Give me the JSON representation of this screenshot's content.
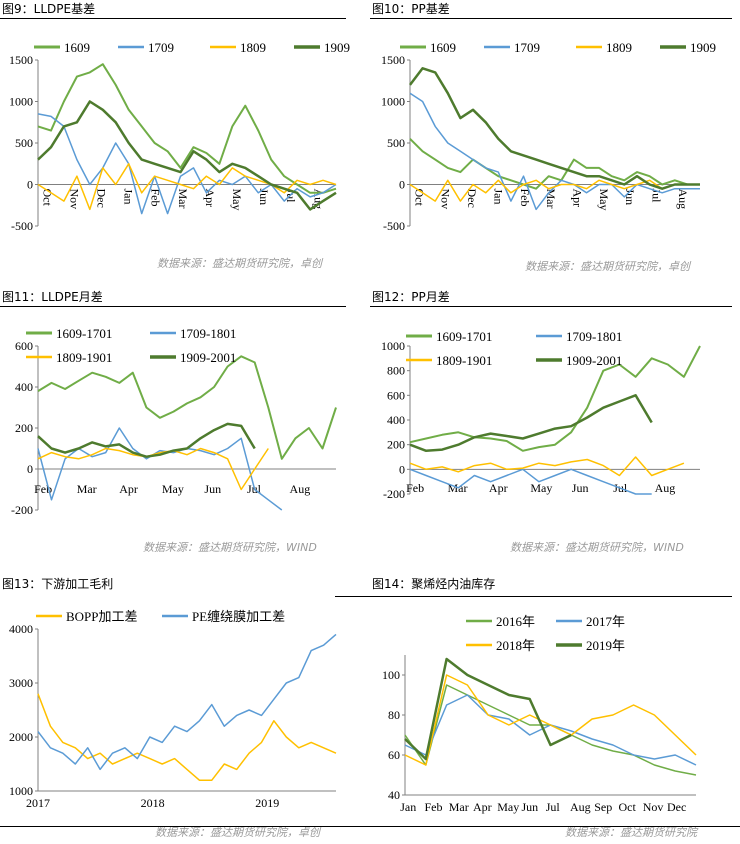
{
  "colors": {
    "light_green": "#70AD47",
    "blue": "#5B9BD5",
    "yellow": "#FFC000",
    "dark_green": "#4E7B2E"
  },
  "panels": [
    {
      "title": "图9：LLDPE基差",
      "source": "数据来源：盛达期货研究院，卓创"
    },
    {
      "title": "图10：PP基差",
      "source": "数据来源：盛达期货研究院，卓创"
    },
    {
      "title": "图11：LLDPE月差",
      "source": "数据来源：盛达期货研究院，WIND"
    },
    {
      "title": "图12：PP月差",
      "source": "数据来源：盛达期货研究院，WIND"
    },
    {
      "title": "图13：下游加工毛利",
      "source": "数据来源：盛达期货研究院，卓创"
    },
    {
      "title": "图14：聚烯烃内油库存",
      "source": "数据来源：盛达期货研究院"
    }
  ],
  "chart_data": [
    {
      "type": "line",
      "ylim": [
        -500,
        1500
      ],
      "yticks": [
        -500,
        0,
        500,
        1000,
        1500
      ],
      "xticks": [
        "Oct",
        "Nov",
        "Dec",
        "Jan",
        "Feb",
        "Mar",
        "Apr",
        "May",
        "Jun",
        "Jul",
        "Aug"
      ],
      "x_rotated": true,
      "series": [
        {
          "name": "1609",
          "color": "light_green",
          "width": 2,
          "values": [
            700,
            650,
            1000,
            1300,
            1350,
            1450,
            1200,
            900,
            700,
            500,
            400,
            200,
            450,
            380,
            250,
            700,
            950,
            650,
            300,
            100,
            0,
            -100,
            -100,
            -50
          ]
        },
        {
          "name": "1709",
          "color": "blue",
          "width": 1.5,
          "values": [
            850,
            820,
            700,
            300,
            0,
            200,
            500,
            250,
            -350,
            100,
            -350,
            100,
            200,
            -100,
            50,
            0,
            100,
            -100,
            0,
            -200,
            -50,
            -150,
            -100,
            0
          ]
        },
        {
          "name": "1809",
          "color": "yellow",
          "width": 1.5,
          "values": [
            0,
            -100,
            -200,
            100,
            -300,
            200,
            0,
            250,
            -100,
            100,
            50,
            0,
            -50,
            100,
            0,
            200,
            100,
            50,
            0,
            -100,
            50,
            0,
            50,
            0
          ]
        },
        {
          "name": "1909",
          "color": "dark_green",
          "width": 2.5,
          "values": [
            300,
            450,
            700,
            750,
            1000,
            900,
            750,
            500,
            300,
            250,
            200,
            150,
            400,
            300,
            150,
            250,
            200,
            100,
            0,
            -50,
            -100,
            -300,
            -200,
            -100
          ]
        }
      ]
    },
    {
      "type": "line",
      "ylim": [
        -500,
        1500
      ],
      "yticks": [
        -500,
        0,
        500,
        1000,
        1500
      ],
      "xticks": [
        "Oct",
        "Nov",
        "Dec",
        "Jan",
        "Feb",
        "Mar",
        "Apr",
        "May",
        "Jun",
        "Jul",
        "Aug"
      ],
      "x_rotated": true,
      "series": [
        {
          "name": "1609",
          "color": "light_green",
          "width": 2,
          "values": [
            550,
            400,
            300,
            200,
            150,
            300,
            200,
            100,
            50,
            0,
            -50,
            100,
            50,
            300,
            200,
            200,
            100,
            50,
            150,
            100,
            0,
            50,
            0,
            0
          ]
        },
        {
          "name": "1709",
          "color": "blue",
          "width": 1.5,
          "values": [
            1100,
            1000,
            700,
            500,
            400,
            300,
            200,
            150,
            -200,
            100,
            -300,
            -100,
            50,
            0,
            -100,
            0,
            0,
            -150,
            0,
            -50,
            -100,
            -50,
            -50,
            -50
          ]
        },
        {
          "name": "1809",
          "color": "yellow",
          "width": 1.5,
          "values": [
            0,
            -100,
            -200,
            50,
            -200,
            0,
            -100,
            50,
            -100,
            0,
            50,
            -50,
            0,
            0,
            -50,
            50,
            0,
            -50,
            0,
            50,
            -50,
            0,
            0,
            0
          ]
        },
        {
          "name": "1909",
          "color": "dark_green",
          "width": 2.5,
          "values": [
            1200,
            1400,
            1350,
            1100,
            800,
            900,
            750,
            550,
            400,
            350,
            300,
            250,
            200,
            150,
            100,
            100,
            50,
            0,
            100,
            0,
            -50,
            0,
            0,
            0
          ]
        }
      ]
    },
    {
      "type": "line",
      "ylim": [
        -200,
        600
      ],
      "yticks": [
        -200,
        0,
        200,
        400,
        600
      ],
      "xticks": [
        "Feb",
        "Mar",
        "Apr",
        "May",
        "Jun",
        "Jul",
        "Aug"
      ],
      "x_rotated": false,
      "series": [
        {
          "name": "1609-1701",
          "color": "light_green",
          "width": 2,
          "values": [
            380,
            420,
            390,
            430,
            470,
            450,
            420,
            470,
            300,
            250,
            280,
            320,
            350,
            400,
            500,
            550,
            520,
            300,
            50,
            150,
            200,
            100,
            300
          ]
        },
        {
          "name": "1709-1801",
          "color": "blue",
          "width": 1.5,
          "values": [
            100,
            -150,
            50,
            100,
            60,
            80,
            200,
            100,
            50,
            90,
            80,
            100,
            90,
            70,
            100,
            150,
            -100,
            -150,
            -200
          ]
        },
        {
          "name": "1809-1901",
          "color": "yellow",
          "width": 1.5,
          "values": [
            50,
            80,
            60,
            50,
            70,
            100,
            90,
            70,
            60,
            80,
            90,
            70,
            100,
            80,
            50,
            -100,
            0,
            100
          ]
        },
        {
          "name": "1909-2001",
          "color": "dark_green",
          "width": 2.5,
          "values": [
            160,
            100,
            80,
            100,
            130,
            110,
            120,
            80,
            60,
            70,
            90,
            100,
            150,
            190,
            220,
            210,
            100
          ]
        }
      ]
    },
    {
      "type": "line",
      "ylim": [
        -200,
        1000
      ],
      "yticks": [
        -200,
        0,
        200,
        400,
        600,
        800,
        1000
      ],
      "xticks": [
        "Feb",
        "Mar",
        "Apr",
        "May",
        "Jun",
        "Jul",
        "Aug"
      ],
      "x_rotated": false,
      "series": [
        {
          "name": "1609-1701",
          "color": "light_green",
          "width": 2,
          "values": [
            220,
            250,
            280,
            300,
            260,
            250,
            230,
            150,
            180,
            200,
            300,
            500,
            800,
            850,
            750,
            900,
            850,
            750,
            1000
          ]
        },
        {
          "name": "1709-1801",
          "color": "blue",
          "width": 1.5,
          "values": [
            0,
            -50,
            -100,
            -150,
            -50,
            -100,
            -50,
            0,
            -100,
            -50,
            0,
            -50,
            -100,
            -150,
            -200,
            -200
          ]
        },
        {
          "name": "1809-1901",
          "color": "yellow",
          "width": 1.5,
          "values": [
            50,
            0,
            20,
            -20,
            30,
            50,
            0,
            10,
            50,
            30,
            60,
            80,
            30,
            -50,
            100,
            -50,
            0,
            50
          ]
        },
        {
          "name": "1909-2001",
          "color": "dark_green",
          "width": 2.5,
          "values": [
            200,
            150,
            160,
            200,
            260,
            290,
            270,
            250,
            290,
            330,
            350,
            420,
            500,
            550,
            600,
            380
          ]
        }
      ]
    },
    {
      "type": "line",
      "ylim": [
        1000,
        4000
      ],
      "yticks": [
        1000,
        2000,
        3000,
        4000
      ],
      "xticks": [
        "2017",
        "2018",
        "2019"
      ],
      "x_rotated": false,
      "series": [
        {
          "name": "BOPP加工差",
          "color": "yellow",
          "width": 1.5,
          "values": [
            2800,
            2200,
            1900,
            1800,
            1600,
            1700,
            1500,
            1600,
            1700,
            1600,
            1500,
            1600,
            1400,
            1200,
            1200,
            1500,
            1400,
            1700,
            1900,
            2300,
            2000,
            1800,
            1900,
            1800,
            1700
          ]
        },
        {
          "name": "PE缠绕膜加工差",
          "color": "blue",
          "width": 1.5,
          "values": [
            2100,
            1800,
            1700,
            1500,
            1800,
            1400,
            1700,
            1800,
            1600,
            2000,
            1900,
            2200,
            2100,
            2300,
            2600,
            2200,
            2400,
            2500,
            2400,
            2700,
            3000,
            3100,
            3600,
            3700,
            3900
          ]
        }
      ]
    },
    {
      "type": "line",
      "ylim": [
        40,
        110
      ],
      "yticks": [
        40,
        60,
        80,
        100
      ],
      "xticks": [
        "Jan",
        "Feb",
        "Mar",
        "Apr",
        "May",
        "Jun",
        "Jul",
        "Aug",
        "Sep",
        "Oct",
        "Nov",
        "Dec"
      ],
      "x_rotated": false,
      "series": [
        {
          "name": "2016年",
          "color": "light_green",
          "width": 1.5,
          "values": [
            70,
            55,
            95,
            90,
            85,
            80,
            75,
            75,
            70,
            65,
            62,
            60,
            55,
            52,
            50
          ]
        },
        {
          "name": "2017年",
          "color": "blue",
          "width": 1.5,
          "values": [
            65,
            60,
            85,
            90,
            80,
            78,
            70,
            75,
            72,
            68,
            65,
            60,
            58,
            60,
            55
          ]
        },
        {
          "name": "2018年",
          "color": "yellow",
          "width": 1.5,
          "values": [
            60,
            55,
            100,
            95,
            80,
            75,
            80,
            75,
            70,
            78,
            80,
            85,
            80,
            70,
            60
          ]
        },
        {
          "name": "2019年",
          "color": "dark_green",
          "width": 2.5,
          "values": [
            68,
            58,
            108,
            100,
            95,
            90,
            88,
            65,
            70
          ]
        }
      ]
    }
  ]
}
